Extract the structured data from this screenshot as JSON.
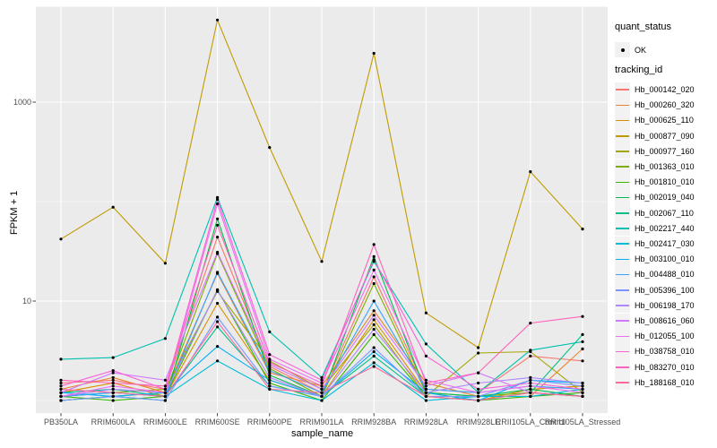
{
  "figure": {
    "background": "#FFFFFF",
    "panel_background": "#EBEBEB",
    "grid_color": "#FFFFFF",
    "point_color": "#000000",
    "axis_text_color": "#4D4D4D"
  },
  "axes": {
    "x": {
      "title": "sample_name"
    },
    "y": {
      "title": "FPKM + 1",
      "scale": "log10",
      "major_ticks": [
        1000,
        10
      ],
      "minor_gridlines": [
        100,
        1
      ]
    }
  },
  "legend": {
    "quant_status": {
      "title": "quant_status",
      "items": [
        {
          "label": "OK",
          "symbol": "filled-point",
          "color": "#000000"
        }
      ]
    },
    "tracking_id": {
      "title": "tracking_id"
    }
  },
  "chart_data": {
    "type": "line",
    "title": "",
    "xlabel": "sample_name",
    "ylabel": "FPKM + 1",
    "y_scale": "log10",
    "ylim": [
      0.85,
      9000
    ],
    "grid": true,
    "legend_position": "right",
    "point_shape": "filled-circle",
    "categories": [
      "PB350LA",
      "RRIM600LA",
      "RRIM600LE",
      "RRIM600SE",
      "RRIM600PE",
      "RRIM901LA",
      "RRIM928BA",
      "RRIM928LA",
      "RRIM928LE",
      "RRII105LA_Control",
      "RRII105LA_Stressed"
    ],
    "series": [
      {
        "name": "Hb_000142_020",
        "color": "#F8766D",
        "values": [
          1.5,
          1.6,
          1.3,
          44,
          2.2,
          1.2,
          17.5,
          1.3,
          1.2,
          2.8,
          2.5
        ]
      },
      {
        "name": "Hb_000260_320",
        "color": "#EA8331",
        "values": [
          1.3,
          1.7,
          1.2,
          19,
          1.9,
          1.4,
          8,
          1.5,
          1.1,
          1.1,
          3.3
        ]
      },
      {
        "name": "Hb_000625_110",
        "color": "#D89000",
        "values": [
          1.2,
          1.5,
          1.1,
          9.5,
          1.6,
          1.1,
          6.5,
          1.2,
          1.0,
          1.3,
          1.4
        ]
      },
      {
        "name": "Hb_000877_090",
        "color": "#C09B00",
        "values": [
          42,
          88,
          24,
          6700,
          350,
          25,
          3100,
          7.6,
          3.4,
          200,
          53
        ]
      },
      {
        "name": "Hb_000977_160",
        "color": "#A3A500",
        "values": [
          1.1,
          1.2,
          1.3,
          12.5,
          2.5,
          1.3,
          5.8,
          1.1,
          3.0,
          3.1,
          1.2
        ]
      },
      {
        "name": "Hb_001363_010",
        "color": "#7CAE00",
        "values": [
          1.0,
          1.1,
          1.2,
          30,
          2.1,
          1.1,
          15,
          1.2,
          1.1,
          1.2,
          1.1
        ]
      },
      {
        "name": "Hb_001810_010",
        "color": "#39B600",
        "values": [
          1.1,
          1.0,
          1.1,
          13,
          1.5,
          1.0,
          4.6,
          1.1,
          1.0,
          1.1,
          1.2
        ]
      },
      {
        "name": "Hb_002019_040",
        "color": "#00BB4E",
        "values": [
          1.0,
          1.1,
          1.0,
          67,
          1.8,
          1.1,
          28,
          1.2,
          1.1,
          1.3,
          1.1
        ]
      },
      {
        "name": "Hb_002067_110",
        "color": "#00C087",
        "values": [
          1.2,
          1.3,
          1.1,
          5.5,
          1.4,
          1.1,
          2.8,
          1.1,
          1.0,
          1.2,
          4.6
        ]
      },
      {
        "name": "Hb_002217_440",
        "color": "#00C0AF",
        "values": [
          2.6,
          2.7,
          4.2,
          110,
          4.9,
          1.7,
          25,
          3.7,
          1.2,
          3.2,
          3.9
        ]
      },
      {
        "name": "Hb_002417_030",
        "color": "#00BCD8",
        "values": [
          1.1,
          1.2,
          1.1,
          2.5,
          1.3,
          1.0,
          2.4,
          1.0,
          1.1,
          1.1,
          1.3
        ]
      },
      {
        "name": "Hb_003100_010",
        "color": "#00B0F6",
        "values": [
          1.2,
          1.1,
          1.2,
          3.5,
          1.6,
          1.1,
          3.1,
          1.2,
          1.0,
          1.6,
          1.5
        ]
      },
      {
        "name": "Hb_004488_010",
        "color": "#35A2FF",
        "values": [
          1.1,
          1.2,
          1.1,
          19.5,
          2.0,
          1.2,
          10,
          1.3,
          1.2,
          1.4,
          1.3
        ]
      },
      {
        "name": "Hb_005396_100",
        "color": "#7997FF",
        "values": [
          1.0,
          1.1,
          1.0,
          6.9,
          1.4,
          1.1,
          3.4,
          1.1,
          1.1,
          1.6,
          1.4
        ]
      },
      {
        "name": "Hb_006198_170",
        "color": "#AE87FF",
        "values": [
          1.1,
          1.3,
          1.2,
          12.8,
          1.7,
          1.1,
          5.2,
          1.2,
          1.5,
          1.7,
          1.5
        ]
      },
      {
        "name": "Hb_008616_060",
        "color": "#D277FF",
        "values": [
          1.2,
          1.9,
          1.6,
          31,
          2.3,
          1.3,
          7.2,
          1.4,
          1.9,
          1.2,
          1.1
        ]
      },
      {
        "name": "Hb_012055_100",
        "color": "#EE6EF4",
        "values": [
          1.1,
          1.4,
          1.2,
          95,
          2.6,
          1.5,
          20.5,
          1.6,
          1.2,
          1.4,
          1.2
        ]
      },
      {
        "name": "Hb_038758_010",
        "color": "#FB61D7",
        "values": [
          1.4,
          2.0,
          1.3,
          105,
          2.9,
          1.6,
          26,
          2.8,
          1.3,
          1.5,
          1.3
        ]
      },
      {
        "name": "Hb_083270_010",
        "color": "#FF62BC",
        "values": [
          1.6,
          1.5,
          1.4,
          58,
          2.4,
          1.4,
          37,
          1.5,
          1.9,
          6.0,
          7.0
        ]
      },
      {
        "name": "Hb_188168_010",
        "color": "#FF6A9A",
        "values": [
          1.3,
          1.2,
          1.1,
          6.2,
          1.3,
          1.2,
          2.2,
          1.1,
          1.0,
          1.2,
          1.1
        ]
      }
    ]
  }
}
